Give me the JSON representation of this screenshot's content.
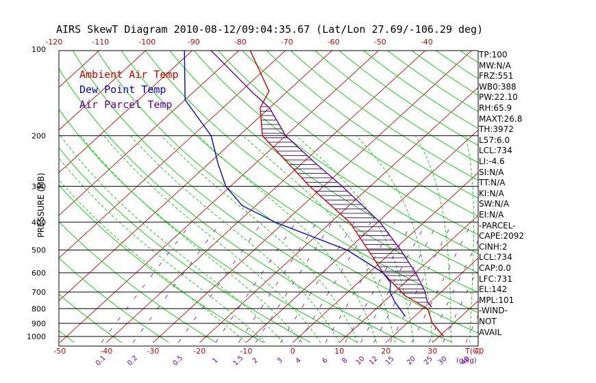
{
  "chart_data": {
    "type": "line",
    "title": "AIRS SkewT Diagram 2010-08-12/09:04:35.67 (Lat/Lon 27.69/-106.29 deg)",
    "ylabel": "PRESSURE (MB)",
    "xlabel": "T(C)",
    "mixing_ratio_unit": "(g/kg)",
    "y_scale": "log",
    "ylim": [
      1000,
      100
    ],
    "pressure_ticks": [
      100,
      200,
      300,
      400,
      500,
      600,
      700,
      800,
      900,
      1000
    ],
    "top_temp_ticks": [
      -120,
      -110,
      -100,
      -90,
      -80,
      -70,
      -60,
      -50,
      -40
    ],
    "bottom_temp_ticks": [
      -50,
      -40,
      -30,
      -20,
      -10,
      0,
      10,
      20,
      30,
      40
    ],
    "mixing_ratio_ticks": [
      "0.1",
      "0.2",
      "0.5",
      "1",
      "1.5",
      "2",
      "3",
      "4",
      "6",
      "8",
      "10",
      "12",
      "15",
      "20",
      "25",
      "30",
      "40"
    ],
    "legend": [
      {
        "name": "Ambient Air Temp",
        "color": "#cc0000"
      },
      {
        "name": "Dew Point Temp",
        "color": "#0000cc"
      },
      {
        "name": "Air Parcel Temp",
        "color": "#660099"
      }
    ],
    "series": [
      {
        "name": "Ambient Air Temp",
        "color": "#cc0000",
        "points": [
          [
            1000,
            31
          ],
          [
            900,
            25.5
          ],
          [
            800,
            21
          ],
          [
            720,
            13
          ],
          [
            700,
            11.5
          ],
          [
            600,
            3
          ],
          [
            500,
            -5.5
          ],
          [
            400,
            -16
          ],
          [
            300,
            -33
          ],
          [
            200,
            -55
          ],
          [
            160,
            -62
          ],
          [
            140,
            -64
          ],
          [
            100,
            -78
          ]
        ]
      },
      {
        "name": "Dew Point Temp",
        "color": "#0000cc",
        "points": [
          [
            850,
            18
          ],
          [
            800,
            15
          ],
          [
            760,
            12.5
          ],
          [
            700,
            9
          ],
          [
            650,
            7
          ],
          [
            600,
            3
          ],
          [
            500,
            -10
          ],
          [
            400,
            -32
          ],
          [
            350,
            -43
          ],
          [
            300,
            -51
          ],
          [
            250,
            -58
          ],
          [
            200,
            -66
          ],
          [
            150,
            -80
          ],
          [
            100,
            -92
          ]
        ]
      },
      {
        "name": "Air Parcel Temp",
        "color": "#660099",
        "points": [
          [
            790,
            21.5
          ],
          [
            760,
            19.5
          ],
          [
            734,
            18.2
          ],
          [
            700,
            16.6
          ],
          [
            600,
            10
          ],
          [
            500,
            1.5
          ],
          [
            400,
            -9.5
          ],
          [
            300,
            -26
          ],
          [
            250,
            -37
          ],
          [
            200,
            -50
          ],
          [
            160,
            -60
          ],
          [
            142,
            -67
          ],
          [
            101,
            -86
          ]
        ]
      }
    ]
  },
  "indices": [
    "TP:100",
    "MW:N/A",
    "FRZ:551",
    "WB0:388",
    "PW:22.10",
    "RH:65.9",
    "MAXT:26.8",
    "TH:3972",
    "L57:6.0",
    "LCL:734",
    "LI:-4.6",
    "SI:N/A",
    "TT:N/A",
    "KI:N/A",
    "SW:N/A",
    "EI:N/A",
    "-PARCEL-",
    "CAPE:2092",
    "CINH:2",
    "LCL:734",
    "CAP:0.0",
    "LFC:731",
    "EL:142",
    "MPL:101",
    "-WIND-",
    "NOT",
    "AVAIL"
  ],
  "colors": {
    "dry_adiabat": "#00cc00",
    "moist_adiabat": "#00cc00",
    "isotherm": "#cc0000",
    "mixing_ratio": "#6600aa",
    "isobar": "#000000",
    "hatch": "#330066"
  }
}
